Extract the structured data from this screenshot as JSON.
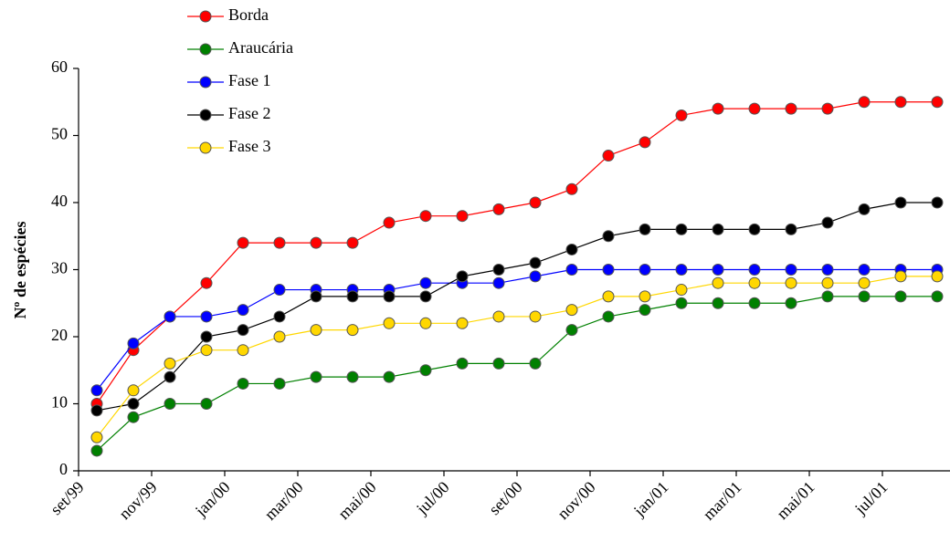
{
  "chart_data": {
    "type": "line",
    "y_label": "Nº de espécies",
    "categories": [
      "set/99",
      null,
      "nov/99",
      null,
      "jan/00",
      null,
      "mar/00",
      null,
      "mai/00",
      null,
      "jul/00",
      null,
      "set/00",
      null,
      "nov/00",
      null,
      "jan/01",
      null,
      "mar/01",
      null,
      "mai/01",
      null,
      "jul/01",
      null
    ],
    "series": [
      {
        "name": "Borda",
        "color": "#ff0000",
        "values": [
          10,
          18,
          23,
          28,
          34,
          34,
          34,
          34,
          37,
          38,
          38,
          39,
          40,
          42,
          47,
          49,
          53,
          54,
          54,
          54,
          54,
          55,
          55,
          55
        ]
      },
      {
        "name": "Araucária",
        "color": "#008000",
        "values": [
          3,
          8,
          10,
          10,
          13,
          13,
          14,
          14,
          14,
          15,
          16,
          16,
          16,
          21,
          23,
          24,
          25,
          25,
          25,
          25,
          26,
          26,
          26,
          26
        ]
      },
      {
        "name": "Fase 1",
        "color": "#0000ff",
        "values": [
          12,
          19,
          23,
          23,
          24,
          27,
          27,
          27,
          27,
          28,
          28,
          28,
          29,
          30,
          30,
          30,
          30,
          30,
          30,
          30,
          30,
          30,
          30,
          30
        ]
      },
      {
        "name": "Fase 2",
        "color": "#000000",
        "values": [
          9,
          10,
          14,
          20,
          21,
          23,
          26,
          26,
          26,
          26,
          29,
          30,
          31,
          33,
          35,
          36,
          36,
          36,
          36,
          36,
          37,
          39,
          40,
          40
        ]
      },
      {
        "name": "Fase 3",
        "color": "#ffd700",
        "values": [
          5,
          12,
          16,
          18,
          18,
          20,
          21,
          21,
          22,
          22,
          22,
          23,
          23,
          24,
          26,
          26,
          27,
          28,
          28,
          28,
          28,
          28,
          29,
          29
        ]
      }
    ],
    "ylim": [
      0,
      60
    ],
    "yticks": [
      0,
      10,
      20,
      30,
      40,
      50,
      60
    ],
    "grid": false
  }
}
